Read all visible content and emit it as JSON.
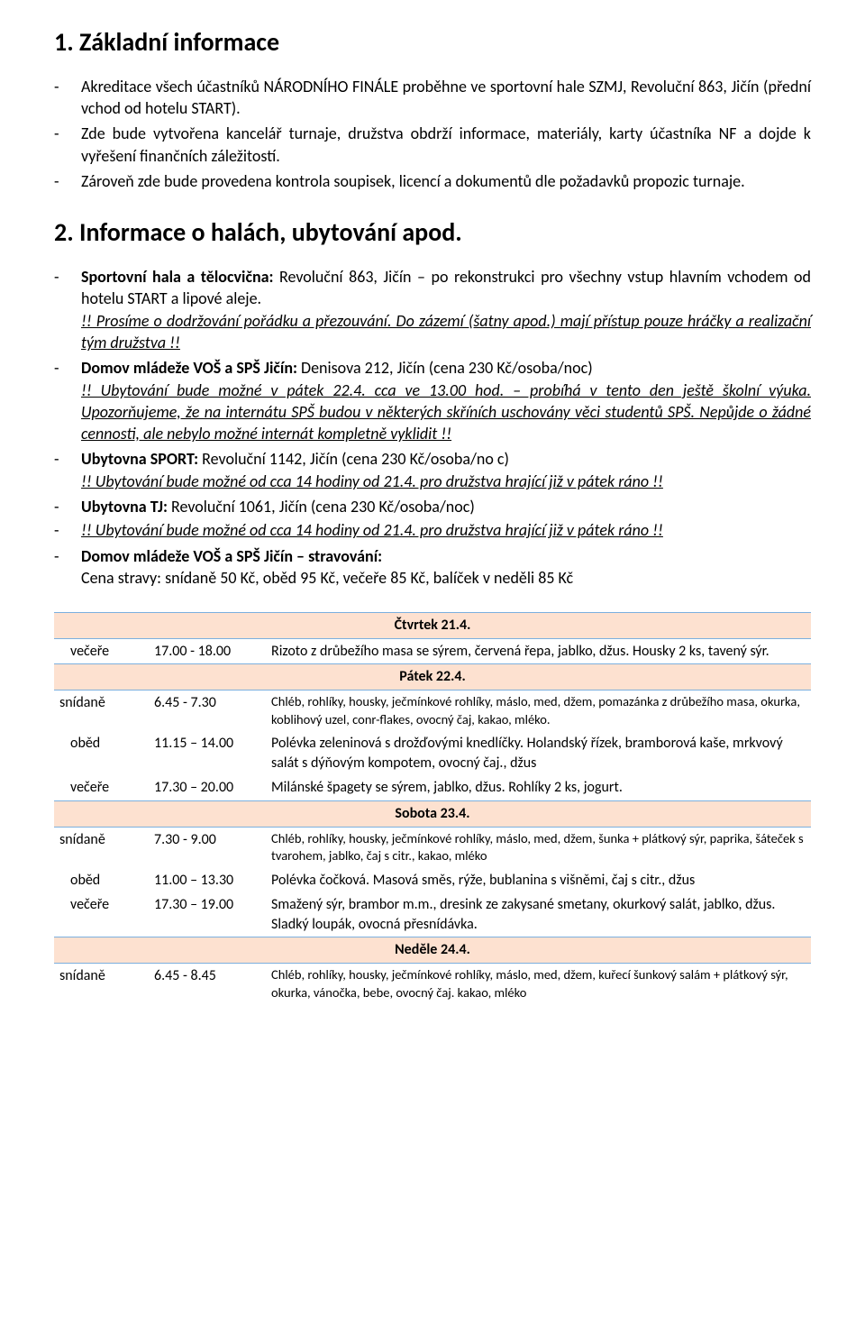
{
  "section1": {
    "title": "1.  Základní informace",
    "items": [
      "Akreditace všech účastníků NÁRODNÍHO FINÁLE proběhne ve sportovní hale SZMJ, Revoluční 863, Jičín (přední vchod od hotelu START).",
      "Zde bude vytvořena kancelář turnaje, družstva obdrží informace, materiály, karty účastníka NF a dojde k vyřešení finančních záležitostí.",
      "Zároveň zde bude provedena kontrola soupisek, licencí a dokumentů dle požadavků propozic turnaje."
    ]
  },
  "section2": {
    "title": "2.  Informace o halách, ubytování apod.",
    "hallLabel": "Sportovní hala a tělocvična:",
    "hallText": " Revoluční 863, Jičín – po rekonstrukci pro všechny vstup hlavním vchodem od hotelu START a lipové aleje.",
    "hallNote1": "!! Prosíme o dodržování pořádku a přezouvání. Do zázemí (šatny apod.) mají přístup pouze hráčky a realizační tým družstva !!",
    "dm1Label": "Domov mládeže VOŠ a SPŠ Jičín:",
    "dm1Text": " Denisova 212, Jičín (cena 230 Kč/osoba/noc)",
    "dm1Note": "!! Ubytování bude možné v pátek 22.4. cca ve 13.00 hod. – probíhá v tento den ještě školní výuka. Upozorňujeme, že  na  internátu  SPŠ  budou  v některých  skříních  uschovány  věci studentů SPŠ. Nepůjde o žádné cennosti, ale nebylo možné internát kompletně vyklidit !!",
    "sportLabel": "Ubytovna SPORT:",
    "sportText": " Revoluční 1142, Jičín (cena 230 Kč/osoba/no c)",
    "sportNote": "!! Ubytování bude možné od  cca 14  hodiny od 21.4.  pro družstva hrající již v pátek ráno !!",
    "tjLabel": "Ubytovna TJ:",
    "tjText": " Revoluční 1061, Jičín (cena 230 Kč/osoba/noc)",
    "tjNote": "!! Ubytování bude možné od  cca 14  hodiny od 21.4.  pro družstva hrající již v pátek ráno !!",
    "cateringLabel": "Domov mládeže VOŠ a SPŠ Jičín –  stravování:",
    "cateringPrice": "Cena stravy: snídaně 50 Kč, oběd 95 Kč, večeře 85 Kč, balíček v neděli 85 Kč"
  },
  "meals": {
    "labels": {
      "breakfast": "snídaně",
      "lunch": "oběd",
      "dinner": "večeře"
    },
    "days": [
      {
        "name": "Čtvrtek 21.4.",
        "rows": [
          {
            "meal": "dinner",
            "time": "17.00 - 18.00",
            "desc": "Rizoto z drůbežího masa se sýrem, červená řepa, jablko, džus. Housky 2 ks, tavený sýr.",
            "small": false
          }
        ]
      },
      {
        "name": "Pátek 22.4.",
        "rows": [
          {
            "meal": "breakfast",
            "time": "6.45 - 7.30",
            "desc": "Chléb, rohlíky, housky, ječmínkové rohlíky, máslo, med, džem, pomazánka z drůbežího masa, okurka, koblihový uzel, conr-flakes, ovocný čaj, kakao, mléko.",
            "small": true
          },
          {
            "meal": "lunch",
            "time": "11.15 – 14.00",
            "desc": "Polévka zeleninová s drožďovými knedlíčky. Holandský řízek, bramborová kaše, mrkvový salát s dýňovým kompotem, ovocný čaj., džus",
            "small": false
          },
          {
            "meal": "dinner",
            "time": "17.30 – 20.00",
            "desc": "Milánské špagety se sýrem, jablko, džus. Rohlíky 2 ks, jogurt.",
            "small": false
          }
        ]
      },
      {
        "name": "Sobota 23.4.",
        "rows": [
          {
            "meal": "breakfast",
            "time": "7.30 - 9.00",
            "desc": "Chléb, rohlíky, housky, ječmínkové rohlíky, máslo, med, džem, šunka + plátkový sýr, paprika, šáteček s tvarohem, jablko, čaj s citr., kakao, mléko",
            "small": true
          },
          {
            "meal": "lunch",
            "time": "11.00 – 13.30",
            "desc": "Polévka čočková. Masová směs, rýže, bublanina s višněmi, čaj s citr., džus",
            "small": false
          },
          {
            "meal": "dinner",
            "time": "17.30 – 19.00",
            "desc": "Smažený sýr, brambor m.m., dresink ze zakysané smetany, okurkový salát, jablko, džus. Sladký loupák, ovocná přesnídávka.",
            "small": false
          }
        ]
      },
      {
        "name": "Neděle 24.4.",
        "rows": [
          {
            "meal": "breakfast",
            "time": "6.45 - 8.45",
            "desc": "Chléb, rohlíky, housky, ječmínkové rohlíky, máslo, med, džem, kuřecí šunkový salám + plátkový sýr, okurka, vánočka, bebe, ovocný čaj. kakao, mléko",
            "small": true
          }
        ]
      }
    ],
    "header_bg": "#fde1d0",
    "header_border": "#7bafde"
  }
}
